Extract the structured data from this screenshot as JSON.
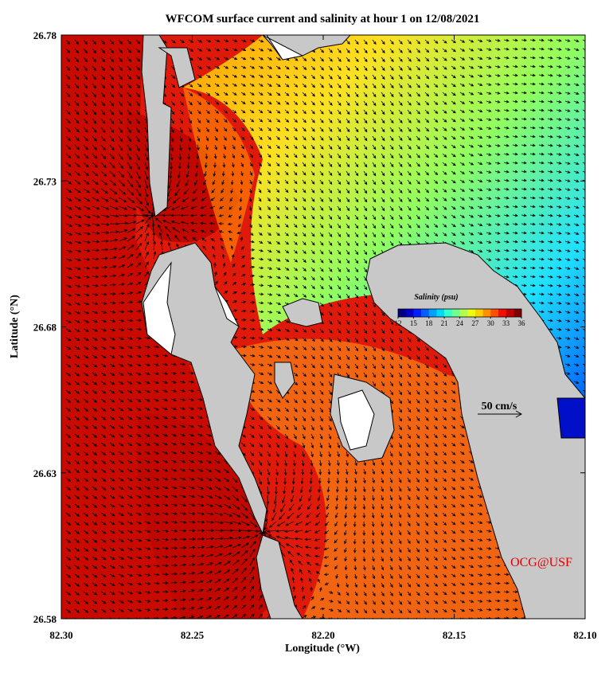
{
  "chart_data": {
    "type": "contour-map",
    "title": "WFCOM surface current and salinity at hour 1 on 12/08/2021",
    "xlabel": "Longitude (°W)",
    "ylabel": "Latitude (°N)",
    "xlim": [
      82.3,
      82.1
    ],
    "ylim": [
      26.58,
      26.78
    ],
    "xticks": [
      {
        "value": 82.3,
        "label": "82.30"
      },
      82.25,
      {
        "value": 82.2,
        "label": "82.20"
      },
      82.15,
      {
        "value": 82.1,
        "label": "82.10"
      }
    ],
    "yticks": [
      26.58,
      26.63,
      26.68,
      26.73,
      26.78
    ],
    "colorbar": {
      "title": "Salinity (psu)",
      "clim": [
        12,
        36
      ],
      "ticks": [
        12,
        15,
        18,
        21,
        24,
        27,
        30,
        33,
        36
      ],
      "colormap": [
        "#00007f",
        "#0000c8",
        "#0020ff",
        "#0060ff",
        "#00a0ff",
        "#00d8ff",
        "#30ffd0",
        "#70ff90",
        "#b0ff50",
        "#e8ff10",
        "#ffd000",
        "#ff9000",
        "#ff5000",
        "#f01000",
        "#c00000",
        "#800000"
      ]
    },
    "vector_scale_label": "50 cm/s",
    "annotation": "OCG@USF"
  }
}
